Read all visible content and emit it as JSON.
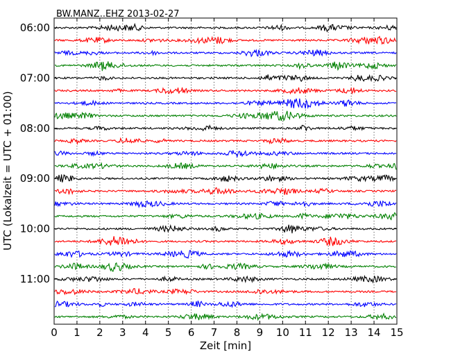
{
  "chart_data": {
    "type": "line",
    "title": "BW.MANZ..EHZ 2013-02-27",
    "xlabel": "Zeit  [min]",
    "ylabel": "UTC (Lokalzeit = UTC + 01:00)",
    "xlim": [
      0,
      15
    ],
    "xticks": [
      0,
      1,
      2,
      3,
      4,
      5,
      6,
      7,
      8,
      9,
      10,
      11,
      12,
      13,
      14,
      15
    ],
    "xtick_labels": [
      "0",
      "1",
      "2",
      "3",
      "4",
      "5",
      "6",
      "7",
      "8",
      "9",
      "10",
      "11",
      "12",
      "13",
      "14",
      "15"
    ],
    "yticks": [
      {
        "label": "06:00",
        "trace_index": 0
      },
      {
        "label": "07:00",
        "trace_index": 4
      },
      {
        "label": "08:00",
        "trace_index": 8
      },
      {
        "label": "09:00",
        "trace_index": 12
      },
      {
        "label": "10:00",
        "trace_index": 16
      },
      {
        "label": "11:00",
        "trace_index": 20
      }
    ],
    "trace_interval_min": 15,
    "trace_count": 24,
    "trace_colors": [
      "#000000",
      "#ff0000",
      "#0000ff",
      "#008000"
    ],
    "grid": "vertical dotted lines at each minute",
    "series": [
      {
        "start": "06:00",
        "color": "#000000"
      },
      {
        "start": "06:15",
        "color": "#ff0000"
      },
      {
        "start": "06:30",
        "color": "#0000ff"
      },
      {
        "start": "06:45",
        "color": "#008000"
      },
      {
        "start": "07:00",
        "color": "#000000"
      },
      {
        "start": "07:15",
        "color": "#ff0000"
      },
      {
        "start": "07:30",
        "color": "#0000ff"
      },
      {
        "start": "07:45",
        "color": "#008000"
      },
      {
        "start": "08:00",
        "color": "#000000"
      },
      {
        "start": "08:15",
        "color": "#ff0000"
      },
      {
        "start": "08:30",
        "color": "#0000ff"
      },
      {
        "start": "08:45",
        "color": "#008000"
      },
      {
        "start": "09:00",
        "color": "#000000"
      },
      {
        "start": "09:15",
        "color": "#ff0000"
      },
      {
        "start": "09:30",
        "color": "#0000ff"
      },
      {
        "start": "09:45",
        "color": "#008000"
      },
      {
        "start": "10:00",
        "color": "#000000"
      },
      {
        "start": "10:15",
        "color": "#ff0000"
      },
      {
        "start": "10:30",
        "color": "#0000ff"
      },
      {
        "start": "10:45",
        "color": "#008000"
      },
      {
        "start": "11:00",
        "color": "#000000"
      },
      {
        "start": "11:15",
        "color": "#ff0000"
      },
      {
        "start": "11:30",
        "color": "#0000ff"
      },
      {
        "start": "11:45",
        "color": "#008000"
      }
    ]
  }
}
